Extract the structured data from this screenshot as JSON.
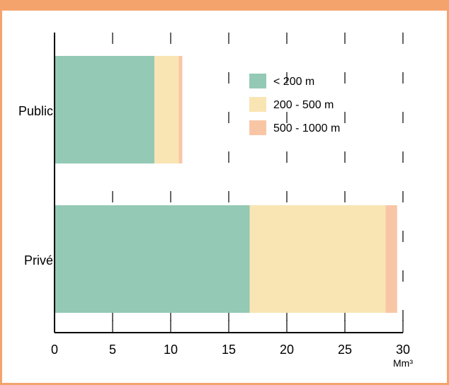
{
  "title": "",
  "chart_data": {
    "type": "bar",
    "orientation": "horizontal",
    "stacked": true,
    "categories": [
      "Public",
      "Privé"
    ],
    "series": [
      {
        "name": "< 200 m",
        "values": [
          8.6,
          16.8
        ],
        "color": "#93c9b5"
      },
      {
        "name": "200 - 500 m",
        "values": [
          2.1,
          11.7
        ],
        "color": "#f9e5b4"
      },
      {
        "name": "500 - 1000 m",
        "values": [
          0.3,
          1.0
        ],
        "color": "#f9c6a5"
      }
    ],
    "xlim": [
      0,
      30
    ],
    "xticks": [
      0,
      5,
      10,
      15,
      20,
      25,
      30
    ],
    "xunit": "Mm³",
    "legend_position": "top-right",
    "grid": "vertical dashed"
  }
}
